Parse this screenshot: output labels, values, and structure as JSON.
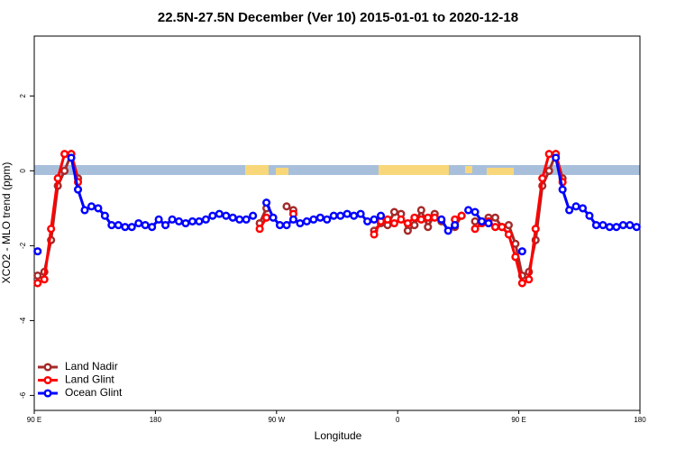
{
  "chart_data": {
    "type": "line",
    "title": "22.5N-27.5N December (Ver 10)   2015-01-01 to 2020-12-18",
    "xlabel": "Longitude",
    "ylabel": "XCO2 - MLO trend (ppm)",
    "x": [
      92.5,
      97.5,
      102.5,
      107.5,
      112.5,
      117.5,
      122.5,
      127.5,
      132.5,
      137.5,
      142.5,
      147.5,
      152.5,
      157.5,
      162.5,
      167.5,
      172.5,
      177.5,
      182.5,
      187.5,
      192.5,
      197.5,
      202.5,
      207.5,
      212.5,
      217.5,
      222.5,
      227.5,
      232.5,
      237.5,
      242.5,
      247.5,
      252.5,
      257.5,
      262.5,
      267.5,
      272.5,
      277.5,
      282.5,
      287.5,
      292.5,
      297.5,
      302.5,
      307.5,
      312.5,
      317.5,
      322.5,
      327.5,
      332.5,
      337.5,
      342.5,
      347.5,
      352.5,
      357.5,
      362.5,
      367.5,
      372.5,
      377.5,
      382.5,
      387.5,
      392.5,
      397.5,
      402.5,
      407.5,
      412.5,
      417.5,
      422.5,
      427.5,
      432.5,
      437.5,
      442.5,
      447.5,
      452.5,
      457.5,
      462.5,
      467.5,
      472.5,
      477.5,
      482.5,
      487.5,
      492.5,
      497.5,
      502.5,
      507.5,
      512.5,
      517.5,
      522.5,
      527.5,
      532.5,
      537.5
    ],
    "xlim": [
      90,
      540
    ],
    "xticks": [
      {
        "value": 90,
        "label": "90 E"
      },
      {
        "value": 180,
        "label": "180"
      },
      {
        "value": 270,
        "label": "90 W"
      },
      {
        "value": 360,
        "label": "0"
      },
      {
        "value": 450,
        "label": "90 E"
      },
      {
        "value": 540,
        "label": "180"
      }
    ],
    "ylim": [
      -6.4,
      3.6
    ],
    "yticks": [
      -6,
      -4,
      -2,
      0,
      2
    ],
    "legend": "bottom-left",
    "series": [
      {
        "name": "Land Nadir",
        "color": "#a52a2a",
        "values": [
          -2.8,
          -2.7,
          -1.85,
          -0.4,
          0.0,
          0.45,
          -0.2,
          null,
          null,
          null,
          null,
          null,
          null,
          null,
          null,
          null,
          null,
          null,
          null,
          null,
          null,
          null,
          null,
          null,
          null,
          null,
          null,
          null,
          null,
          null,
          null,
          null,
          null,
          -1.4,
          -1.0,
          null,
          null,
          -0.95,
          -1.05,
          null,
          null,
          null,
          null,
          null,
          null,
          null,
          null,
          null,
          null,
          null,
          -1.6,
          -1.4,
          -1.45,
          -1.1,
          -1.15,
          -1.6,
          -1.45,
          -1.05,
          -1.5,
          -1.15,
          -1.35,
          null,
          -1.5,
          -1.2,
          null,
          -1.35,
          null,
          -1.25,
          -1.25,
          -1.5,
          -1.45,
          -1.95,
          -2.8,
          -2.7,
          -1.85,
          -0.4,
          0.0,
          0.45,
          -0.2,
          null,
          null,
          null,
          null,
          null,
          null,
          null,
          null,
          null,
          null,
          null
        ]
      },
      {
        "name": "Land Glint",
        "color": "#ff0000",
        "values": [
          -3.0,
          -2.9,
          -1.55,
          -0.2,
          0.45,
          0.45,
          -0.3,
          null,
          null,
          null,
          null,
          null,
          null,
          null,
          null,
          null,
          null,
          null,
          null,
          null,
          null,
          null,
          null,
          null,
          null,
          null,
          null,
          null,
          null,
          null,
          null,
          null,
          null,
          -1.55,
          -1.25,
          null,
          null,
          null,
          -1.15,
          null,
          null,
          null,
          null,
          null,
          null,
          null,
          null,
          null,
          null,
          null,
          -1.7,
          -1.35,
          -1.3,
          -1.4,
          -1.3,
          -1.4,
          -1.25,
          -1.3,
          -1.25,
          -1.25,
          -1.3,
          null,
          -1.3,
          -1.2,
          null,
          -1.55,
          -1.4,
          -1.35,
          -1.5,
          -1.5,
          -1.7,
          -2.3,
          -3.0,
          -2.9,
          -1.55,
          -0.2,
          0.45,
          0.45,
          -0.3,
          null,
          null,
          null,
          null,
          null,
          null,
          null,
          null,
          null,
          null,
          null
        ]
      },
      {
        "name": "Ocean Glint",
        "color": "#0000ff",
        "values": [
          -2.15,
          null,
          null,
          null,
          null,
          0.35,
          -0.5,
          -1.05,
          -0.95,
          -1.0,
          -1.2,
          -1.45,
          -1.45,
          -1.5,
          -1.5,
          -1.4,
          -1.45,
          -1.5,
          -1.3,
          -1.45,
          -1.3,
          -1.35,
          -1.4,
          -1.35,
          -1.35,
          -1.3,
          -1.2,
          -1.15,
          -1.2,
          -1.25,
          -1.3,
          -1.3,
          -1.2,
          null,
          -0.85,
          -1.25,
          -1.45,
          -1.45,
          -1.3,
          -1.4,
          -1.35,
          -1.3,
          -1.25,
          -1.3,
          -1.2,
          -1.2,
          -1.15,
          -1.2,
          -1.15,
          -1.35,
          -1.3,
          -1.2,
          null,
          null,
          null,
          null,
          null,
          null,
          null,
          null,
          -1.3,
          -1.6,
          -1.45,
          null,
          -1.05,
          -1.1,
          -1.35,
          -1.4,
          null,
          null,
          null,
          null,
          -2.15,
          null,
          null,
          null,
          null,
          0.35,
          -0.5,
          -1.05,
          -0.95,
          -1.0,
          -1.2,
          -1.45,
          -1.45,
          -1.5,
          -1.5,
          -1.45,
          -1.45,
          -1.5
        ]
      }
    ]
  }
}
